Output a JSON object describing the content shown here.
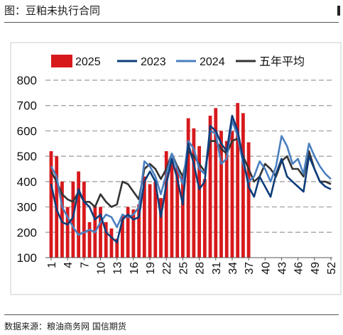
{
  "header": {
    "title": "图：豆粕未执行合同"
  },
  "footer": {
    "source": "数据来源：粮油商务网 国信期货",
    "cut_text": "𠂊"
  },
  "chart_data": {
    "type": "bar+line",
    "title": "",
    "xlabel": "",
    "ylabel": "",
    "ylim": [
      100,
      800
    ],
    "yticks": [
      100,
      200,
      300,
      400,
      500,
      600,
      700,
      800
    ],
    "grid": "horizontal dashed",
    "legend_position": "top",
    "x": [
      1,
      2,
      3,
      4,
      5,
      6,
      7,
      8,
      9,
      10,
      11,
      12,
      13,
      14,
      15,
      16,
      17,
      18,
      19,
      20,
      21,
      22,
      23,
      24,
      25,
      26,
      27,
      28,
      29,
      30,
      31,
      32,
      33,
      34,
      35,
      36,
      37,
      38,
      39,
      40,
      41,
      42,
      43,
      44,
      45,
      46,
      47,
      48,
      49,
      50,
      51,
      52
    ],
    "xticks": [
      1,
      4,
      7,
      10,
      13,
      16,
      19,
      22,
      25,
      28,
      31,
      34,
      37,
      40,
      43,
      46,
      49,
      52
    ],
    "bars": {
      "name": "2025",
      "color": "#d7191c",
      "values": [
        520,
        500,
        400,
        300,
        400,
        440,
        400,
        240,
        300,
        300,
        240,
        215,
        175,
        265,
        300,
        290,
        310,
        420,
        390,
        400,
        335,
        520,
        480,
        460,
        420,
        650,
        610,
        540,
        410,
        660,
        690,
        600,
        560,
        600,
        710,
        670,
        555
      ]
    },
    "series": [
      {
        "name": "2023",
        "color": "#0d3d7a",
        "values": [
          390,
          290,
          240,
          230,
          260,
          370,
          320,
          300,
          250,
          270,
          200,
          180,
          160,
          250,
          270,
          250,
          260,
          400,
          440,
          400,
          260,
          390,
          490,
          410,
          310,
          550,
          470,
          370,
          400,
          620,
          600,
          550,
          520,
          660,
          600,
          490,
          380,
          340,
          420,
          380,
          340,
          430,
          490,
          420,
          400,
          380,
          360,
          500,
          450,
          400,
          380,
          370
        ]
      },
      {
        "name": "2024",
        "color": "#4a7fc0",
        "values": [
          460,
          420,
          300,
          260,
          220,
          190,
          200,
          210,
          200,
          240,
          270,
          260,
          220,
          270,
          260,
          270,
          300,
          480,
          460,
          420,
          350,
          430,
          510,
          450,
          390,
          560,
          530,
          450,
          430,
          600,
          590,
          470,
          490,
          640,
          580,
          470,
          400,
          420,
          480,
          450,
          400,
          460,
          580,
          540,
          470,
          490,
          430,
          550,
          500,
          460,
          430,
          410
        ]
      },
      {
        "name": "五年平均",
        "color": "#333333",
        "values": [
          440,
          400,
          350,
          330,
          320,
          360,
          320,
          320,
          300,
          350,
          320,
          300,
          310,
          400,
          390,
          360,
          330,
          450,
          470,
          450,
          410,
          450,
          510,
          460,
          420,
          520,
          500,
          470,
          440,
          560,
          560,
          530,
          510,
          560,
          570,
          500,
          450,
          400,
          420,
          470,
          450,
          420,
          480,
          500,
          450,
          450,
          420,
          520,
          450,
          400,
          400,
          390
        ]
      }
    ]
  }
}
